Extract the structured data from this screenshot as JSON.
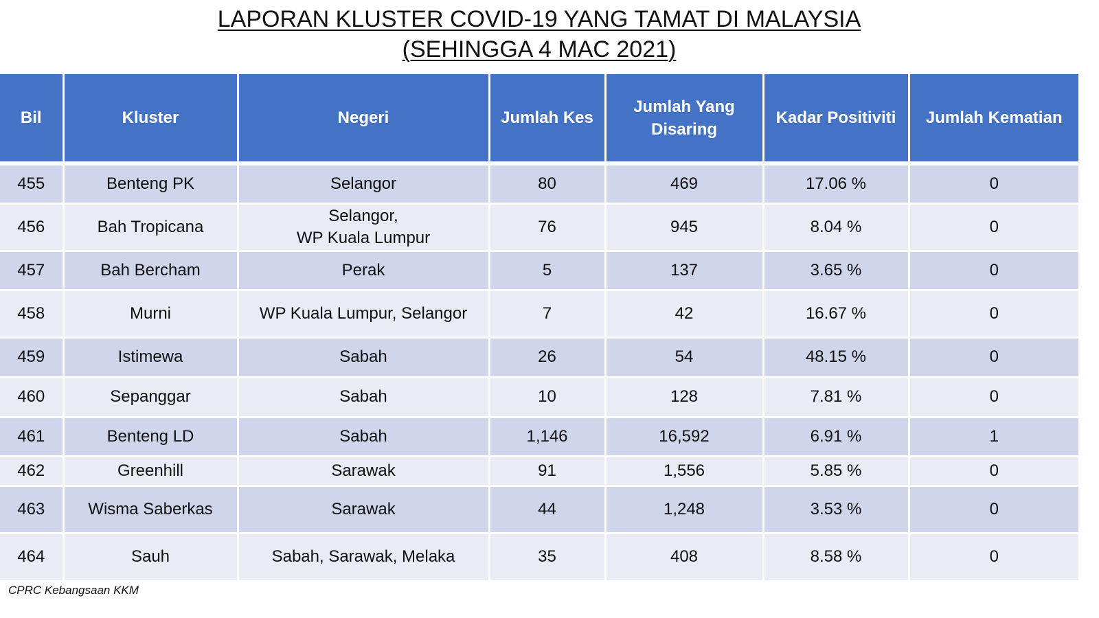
{
  "title": {
    "line1": "LAPORAN KLUSTER COVID-19 YANG TAMAT DI MALAYSIA",
    "line2": "(SEHINGGA 4 MAC 2021)"
  },
  "table": {
    "headers": [
      "Bil",
      "Kluster",
      "Negeri",
      "Jumlah Kes",
      "Jumlah Yang Disaring",
      "Kadar Positiviti",
      "Jumlah Kematian"
    ],
    "rows": [
      {
        "bil": "455",
        "kluster": "Benteng PK",
        "negeri": "Selangor",
        "negeri2": "",
        "kes": "80",
        "disaring": "469",
        "positiviti": "17.06 %",
        "kematian": "0"
      },
      {
        "bil": "456",
        "kluster": "Bah Tropicana",
        "negeri": "Selangor,",
        "negeri2": "WP Kuala Lumpur",
        "kes": "76",
        "disaring": "945",
        "positiviti": "8.04 %",
        "kematian": "0"
      },
      {
        "bil": "457",
        "kluster": "Bah Bercham",
        "negeri": "Perak",
        "negeri2": "",
        "kes": "5",
        "disaring": "137",
        "positiviti": "3.65 %",
        "kematian": "0"
      },
      {
        "bil": "458",
        "kluster": "Murni",
        "negeri": "WP Kuala Lumpur, Selangor",
        "negeri2": "",
        "kes": "7",
        "disaring": "42",
        "positiviti": "16.67 %",
        "kematian": "0"
      },
      {
        "bil": "459",
        "kluster": "Istimewa",
        "negeri": "Sabah",
        "negeri2": "",
        "kes": "26",
        "disaring": "54",
        "positiviti": "48.15 %",
        "kematian": "0"
      },
      {
        "bil": "460",
        "kluster": "Sepanggar",
        "negeri": "Sabah",
        "negeri2": "",
        "kes": "10",
        "disaring": "128",
        "positiviti": "7.81 %",
        "kematian": "0"
      },
      {
        "bil": "461",
        "kluster": "Benteng LD",
        "negeri": "Sabah",
        "negeri2": "",
        "kes": "1,146",
        "disaring": "16,592",
        "positiviti": "6.91 %",
        "kematian": "1"
      },
      {
        "bil": "462",
        "kluster": "Greenhill",
        "negeri": "Sarawak",
        "negeri2": "",
        "kes": "91",
        "disaring": "1,556",
        "positiviti": "5.85 %",
        "kematian": "0"
      },
      {
        "bil": "463",
        "kluster": "Wisma Saberkas",
        "negeri": "Sarawak",
        "negeri2": "",
        "kes": "44",
        "disaring": "1,248",
        "positiviti": "3.53 %",
        "kematian": "0"
      },
      {
        "bil": "464",
        "kluster": "Sauh",
        "negeri": "Sabah, Sarawak, Melaka",
        "negeri2": "",
        "kes": "35",
        "disaring": "408",
        "positiviti": "8.58 %",
        "kematian": "0"
      }
    ]
  },
  "footnote": "CPRC Kebangsaan KKM",
  "colors": {
    "header_bg": "#4472c4",
    "row_odd": "#cfd5ea",
    "row_even": "#e9ebf5"
  }
}
